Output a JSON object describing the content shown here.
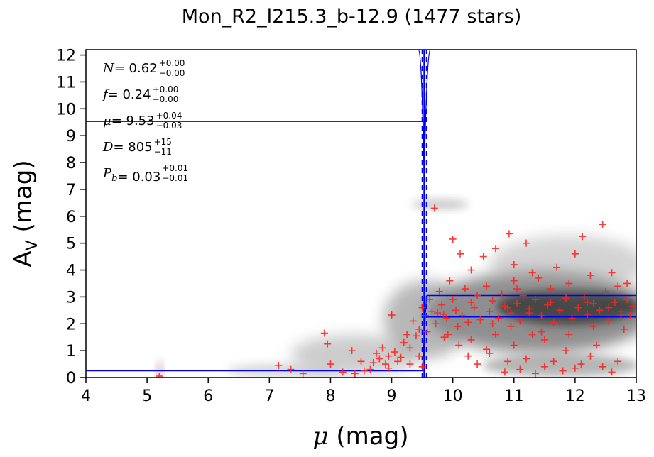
{
  "chart_data": {
    "type": "scatter",
    "title": "Mon_R2_l215.3_b-12.9 (1477 stars)",
    "xlabel_var": "μ",
    "xlabel_unit": "(mag)",
    "ylabel_main": "A",
    "ylabel_sub": "V",
    "ylabel_unit": "(mag)",
    "xlim": [
      4,
      13
    ],
    "ylim": [
      0,
      12.2
    ],
    "xticks": [
      4,
      5,
      6,
      7,
      8,
      9,
      10,
      11,
      12,
      13
    ],
    "yticks": [
      0,
      1,
      2,
      3,
      4,
      5,
      6,
      7,
      8,
      9,
      10,
      11,
      12
    ],
    "grid": false,
    "colors": {
      "points": "#ff2222",
      "fit_lines": "#0000ee",
      "density": "#000000"
    },
    "annotations": [
      {
        "name": "N",
        "value": "= 0.62",
        "sup": "+0.00",
        "sub": "−0.00"
      },
      {
        "name": "f",
        "value": "= 0.24",
        "sup": "+0.00",
        "sub": "−0.00"
      },
      {
        "name": "μ",
        "value": "= 9.53",
        "sup": "+0.04",
        "sub": "−0.03"
      },
      {
        "name": "D",
        "value": "= 805",
        "sup": "+15",
        "sub": "−11"
      },
      {
        "name": "P",
        "name_sub": "b",
        "value": "= 0.03",
        "sup": "+0.01",
        "sub": "−0.01"
      }
    ],
    "fit": {
      "mu": 9.53,
      "mu_lo": 9.5,
      "mu_hi": 9.57,
      "foreground_av": 0.25,
      "background_av_low": 2.25,
      "background_av_high": 3.05,
      "cloud_marker_av": 9.53
    },
    "points": [
      [
        7.15,
        0.45
      ],
      [
        7.35,
        0.3
      ],
      [
        7.55,
        0.15
      ],
      [
        7.9,
        1.65
      ],
      [
        7.95,
        1.25
      ],
      [
        8.0,
        0.5
      ],
      [
        8.2,
        0.2
      ],
      [
        8.35,
        1.0
      ],
      [
        8.4,
        0.15
      ],
      [
        8.55,
        0.25
      ],
      [
        8.65,
        0.3
      ],
      [
        8.7,
        0.55
      ],
      [
        8.75,
        0.9
      ],
      [
        8.8,
        0.7
      ],
      [
        8.85,
        1.1
      ],
      [
        8.9,
        0.5
      ],
      [
        8.95,
        0.8
      ],
      [
        9.0,
        2.35
      ],
      [
        9.0,
        2.3
      ],
      [
        9.05,
        0.95
      ],
      [
        9.1,
        0.6
      ],
      [
        9.15,
        0.75
      ],
      [
        9.2,
        1.3
      ],
      [
        9.25,
        1.6
      ],
      [
        9.3,
        1.1
      ],
      [
        9.35,
        2.1
      ],
      [
        9.4,
        1.55
      ],
      [
        9.45,
        1.8
      ],
      [
        9.5,
        2.6
      ],
      [
        9.55,
        2.3
      ],
      [
        9.5,
        0.4
      ],
      [
        9.58,
        1.7
      ],
      [
        9.62,
        2.9
      ],
      [
        9.66,
        2.45
      ],
      [
        9.7,
        6.3
      ],
      [
        9.72,
        2.0
      ],
      [
        9.78,
        3.2
      ],
      [
        9.82,
        2.7
      ],
      [
        9.86,
        1.5
      ],
      [
        9.9,
        2.2
      ],
      [
        9.95,
        3.6
      ],
      [
        10.0,
        5.15
      ],
      [
        10.0,
        2.9
      ],
      [
        10.05,
        2.5
      ],
      [
        10.08,
        1.9
      ],
      [
        10.12,
        4.6
      ],
      [
        10.15,
        2.3
      ],
      [
        10.2,
        3.3
      ],
      [
        10.25,
        2.05
      ],
      [
        10.3,
        4.0
      ],
      [
        10.3,
        1.4
      ],
      [
        10.35,
        2.6
      ],
      [
        10.4,
        3.05
      ],
      [
        10.45,
        2.15
      ],
      [
        10.5,
        4.5
      ],
      [
        10.55,
        3.4
      ],
      [
        10.6,
        2.45
      ],
      [
        10.6,
        0.9
      ],
      [
        10.65,
        2.85
      ],
      [
        10.7,
        4.8
      ],
      [
        10.75,
        2.2
      ],
      [
        10.8,
        3.1
      ],
      [
        10.85,
        2.65
      ],
      [
        10.9,
        0.6
      ],
      [
        10.92,
        5.35
      ],
      [
        10.95,
        2.4
      ],
      [
        11.0,
        4.2
      ],
      [
        11.0,
        3.6
      ],
      [
        11.05,
        2.75
      ],
      [
        11.1,
        2.1
      ],
      [
        11.1,
        0.3
      ],
      [
        11.15,
        3.05
      ],
      [
        11.2,
        5.0
      ],
      [
        11.25,
        2.55
      ],
      [
        11.3,
        1.6
      ],
      [
        11.35,
        2.9
      ],
      [
        11.4,
        3.7
      ],
      [
        11.45,
        2.3
      ],
      [
        11.5,
        0.4
      ],
      [
        11.55,
        2.7
      ],
      [
        11.6,
        3.3
      ],
      [
        11.65,
        2.05
      ],
      [
        11.7,
        4.1
      ],
      [
        11.75,
        2.5
      ],
      [
        11.8,
        0.25
      ],
      [
        11.85,
        2.95
      ],
      [
        11.9,
        3.5
      ],
      [
        11.95,
        2.2
      ],
      [
        12.0,
        4.6
      ],
      [
        12.05,
        2.6
      ],
      [
        12.1,
        0.5
      ],
      [
        12.12,
        5.25
      ],
      [
        12.15,
        3.0
      ],
      [
        12.2,
        2.35
      ],
      [
        12.25,
        3.8
      ],
      [
        12.3,
        2.75
      ],
      [
        12.35,
        1.2
      ],
      [
        12.4,
        2.5
      ],
      [
        12.45,
        5.7
      ],
      [
        12.5,
        3.2
      ],
      [
        12.55,
        2.1
      ],
      [
        12.6,
        0.2
      ],
      [
        12.65,
        2.8
      ],
      [
        12.7,
        3.4
      ],
      [
        12.75,
        2.45
      ],
      [
        12.8,
        1.8
      ],
      [
        12.85,
        2.9
      ],
      [
        12.9,
        2.3
      ],
      [
        12.95,
        2.65
      ],
      [
        10.4,
        0.5
      ],
      [
        10.55,
        1.05
      ],
      [
        10.7,
        1.6
      ],
      [
        10.85,
        0.2
      ],
      [
        11.0,
        1.2
      ],
      [
        11.2,
        0.7
      ],
      [
        11.35,
        0.15
      ],
      [
        11.5,
        1.4
      ],
      [
        11.65,
        0.6
      ],
      [
        11.85,
        1.0
      ],
      [
        12.0,
        0.35
      ],
      [
        12.25,
        0.8
      ],
      [
        12.45,
        0.4
      ],
      [
        12.7,
        0.6
      ],
      [
        10.25,
        0.8
      ],
      [
        10.1,
        1.2
      ],
      [
        9.92,
        1.6
      ],
      [
        11.3,
        3.9
      ],
      [
        11.05,
        3.3
      ],
      [
        12.6,
        3.9
      ],
      [
        12.85,
        3.5
      ],
      [
        10.95,
        1.9
      ],
      [
        11.45,
        1.7
      ],
      [
        11.9,
        1.6
      ],
      [
        12.3,
        1.9
      ],
      [
        9.85,
        2.35
      ],
      [
        10.65,
        2.0
      ],
      [
        11.75,
        2.0
      ],
      [
        12.55,
        2.6
      ],
      [
        10.9,
        2.6
      ],
      [
        11.6,
        2.8
      ],
      [
        12.2,
        2.8
      ],
      [
        10.3,
        2.8
      ],
      [
        9.75,
        2.4
      ],
      [
        11.25,
        2.4
      ],
      [
        12.75,
        2.3
      ],
      [
        9.45,
        0.8
      ],
      [
        9.3,
        0.5
      ],
      [
        8.95,
        0.35
      ],
      [
        8.5,
        0.6
      ],
      [
        5.2,
        0.05
      ]
    ]
  }
}
